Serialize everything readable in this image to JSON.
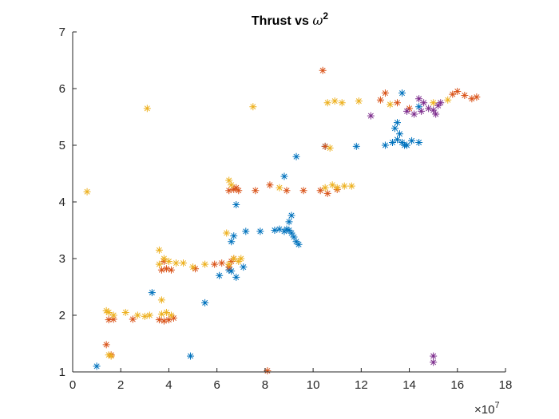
{
  "chart_data": {
    "type": "scatter",
    "title": "Thrust vs ω²",
    "title_main": "Thrust vs ",
    "title_var": "ω",
    "title_exp": "2",
    "xlabel": "",
    "ylabel": "",
    "xlim": [
      0,
      18
    ],
    "ylim": [
      1,
      7
    ],
    "x_multiplier_base": "×10",
    "x_multiplier_exp": "7",
    "x_ticks": [
      0,
      2,
      4,
      6,
      8,
      10,
      12,
      14,
      16,
      18
    ],
    "y_ticks": [
      1,
      2,
      3,
      4,
      5,
      6,
      7
    ],
    "x_tick_labels": [
      "0",
      "2",
      "4",
      "6",
      "8",
      "10",
      "12",
      "14",
      "16",
      "18"
    ],
    "y_tick_labels": [
      "1",
      "2",
      "3",
      "4",
      "5",
      "6",
      "7"
    ],
    "marker": "asterisk",
    "grid": false,
    "series": [
      {
        "color": "#0072BD",
        "points": [
          [
            1.0,
            1.1
          ],
          [
            4.9,
            1.28
          ],
          [
            5.5,
            2.22
          ],
          [
            3.3,
            2.4
          ],
          [
            6.1,
            2.7
          ],
          [
            6.5,
            2.8
          ],
          [
            6.6,
            2.78
          ],
          [
            6.8,
            2.67
          ],
          [
            7.1,
            2.85
          ],
          [
            6.6,
            3.3
          ],
          [
            6.7,
            3.4
          ],
          [
            7.2,
            3.48
          ],
          [
            7.8,
            3.48
          ],
          [
            8.4,
            3.5
          ],
          [
            8.6,
            3.52
          ],
          [
            8.8,
            3.48
          ],
          [
            8.9,
            3.52
          ],
          [
            9.0,
            3.5
          ],
          [
            9.1,
            3.45
          ],
          [
            9.2,
            3.38
          ],
          [
            9.3,
            3.3
          ],
          [
            9.4,
            3.25
          ],
          [
            9.0,
            3.65
          ],
          [
            9.1,
            3.76
          ],
          [
            6.8,
            3.95
          ],
          [
            8.8,
            4.45
          ],
          [
            9.3,
            4.8
          ],
          [
            13.0,
            5.0
          ],
          [
            13.3,
            5.05
          ],
          [
            13.5,
            5.1
          ],
          [
            13.6,
            5.2
          ],
          [
            13.7,
            5.05
          ],
          [
            13.9,
            5.0
          ],
          [
            14.1,
            5.08
          ],
          [
            14.4,
            5.05
          ],
          [
            13.4,
            5.3
          ],
          [
            13.5,
            5.4
          ],
          [
            13.8,
            5.0
          ],
          [
            11.8,
            4.98
          ],
          [
            10.5,
            4.98
          ],
          [
            14.4,
            5.68
          ],
          [
            13.7,
            5.92
          ]
        ]
      },
      {
        "color": "#D95319",
        "points": [
          [
            1.4,
            1.48
          ],
          [
            1.6,
            1.3
          ],
          [
            1.5,
            1.92
          ],
          [
            1.7,
            1.93
          ],
          [
            2.5,
            1.93
          ],
          [
            3.6,
            1.92
          ],
          [
            3.8,
            1.9
          ],
          [
            4.0,
            1.92
          ],
          [
            4.2,
            1.95
          ],
          [
            3.7,
            2.8
          ],
          [
            3.9,
            2.82
          ],
          [
            4.1,
            2.8
          ],
          [
            3.8,
            2.95
          ],
          [
            5.1,
            2.82
          ],
          [
            5.9,
            2.9
          ],
          [
            6.2,
            2.92
          ],
          [
            6.5,
            2.85
          ],
          [
            6.6,
            2.95
          ],
          [
            6.7,
            3.0
          ],
          [
            6.5,
            4.2
          ],
          [
            6.7,
            4.22
          ],
          [
            6.8,
            4.25
          ],
          [
            6.9,
            4.2
          ],
          [
            7.6,
            4.2
          ],
          [
            8.2,
            4.3
          ],
          [
            8.9,
            4.2
          ],
          [
            9.6,
            4.2
          ],
          [
            10.3,
            4.2
          ],
          [
            10.6,
            4.15
          ],
          [
            11.0,
            4.22
          ],
          [
            8.1,
            1.02
          ],
          [
            10.4,
            6.32
          ],
          [
            10.5,
            4.98
          ],
          [
            13.0,
            5.92
          ],
          [
            13.5,
            5.75
          ],
          [
            14.0,
            5.65
          ],
          [
            15.8,
            5.9
          ],
          [
            16.0,
            5.95
          ],
          [
            16.3,
            5.88
          ],
          [
            16.6,
            5.82
          ],
          [
            16.8,
            5.85
          ],
          [
            12.8,
            5.8
          ]
        ]
      },
      {
        "color": "#EDB120",
        "points": [
          [
            0.6,
            4.18
          ],
          [
            1.6,
            1.28
          ],
          [
            1.5,
            1.3
          ],
          [
            1.4,
            2.08
          ],
          [
            1.5,
            2.05
          ],
          [
            1.7,
            2.0
          ],
          [
            2.2,
            2.05
          ],
          [
            2.7,
            2.0
          ],
          [
            3.0,
            1.98
          ],
          [
            3.2,
            2.0
          ],
          [
            3.7,
            2.02
          ],
          [
            3.9,
            2.05
          ],
          [
            4.1,
            2.0
          ],
          [
            3.7,
            2.27
          ],
          [
            3.6,
            2.9
          ],
          [
            3.8,
            3.0
          ],
          [
            4.0,
            2.95
          ],
          [
            4.3,
            2.92
          ],
          [
            4.6,
            2.92
          ],
          [
            5.0,
            2.85
          ],
          [
            5.5,
            2.9
          ],
          [
            3.6,
            3.15
          ],
          [
            6.5,
            2.9
          ],
          [
            6.7,
            3.0
          ],
          [
            6.9,
            2.95
          ],
          [
            7.0,
            3.0
          ],
          [
            3.1,
            5.65
          ],
          [
            6.4,
            3.45
          ],
          [
            6.6,
            4.3
          ],
          [
            6.5,
            4.38
          ],
          [
            7.5,
            5.68
          ],
          [
            8.6,
            4.25
          ],
          [
            10.5,
            4.25
          ],
          [
            10.8,
            4.3
          ],
          [
            11.0,
            4.25
          ],
          [
            11.3,
            4.28
          ],
          [
            11.6,
            4.28
          ],
          [
            10.7,
            4.95
          ],
          [
            10.6,
            5.75
          ],
          [
            10.9,
            5.78
          ],
          [
            11.2,
            5.75
          ],
          [
            11.9,
            5.78
          ],
          [
            13.2,
            5.72
          ],
          [
            15.0,
            5.75
          ],
          [
            15.6,
            5.8
          ]
        ]
      },
      {
        "color": "#7E2F8E",
        "points": [
          [
            13.9,
            5.6
          ],
          [
            14.2,
            5.55
          ],
          [
            14.5,
            5.6
          ],
          [
            14.8,
            5.65
          ],
          [
            15.0,
            5.62
          ],
          [
            15.2,
            5.7
          ],
          [
            15.3,
            5.75
          ],
          [
            15.1,
            5.55
          ],
          [
            14.6,
            5.75
          ],
          [
            14.4,
            5.82
          ],
          [
            12.4,
            5.52
          ],
          [
            15.0,
            1.28
          ],
          [
            15.0,
            1.17
          ]
        ]
      }
    ]
  }
}
